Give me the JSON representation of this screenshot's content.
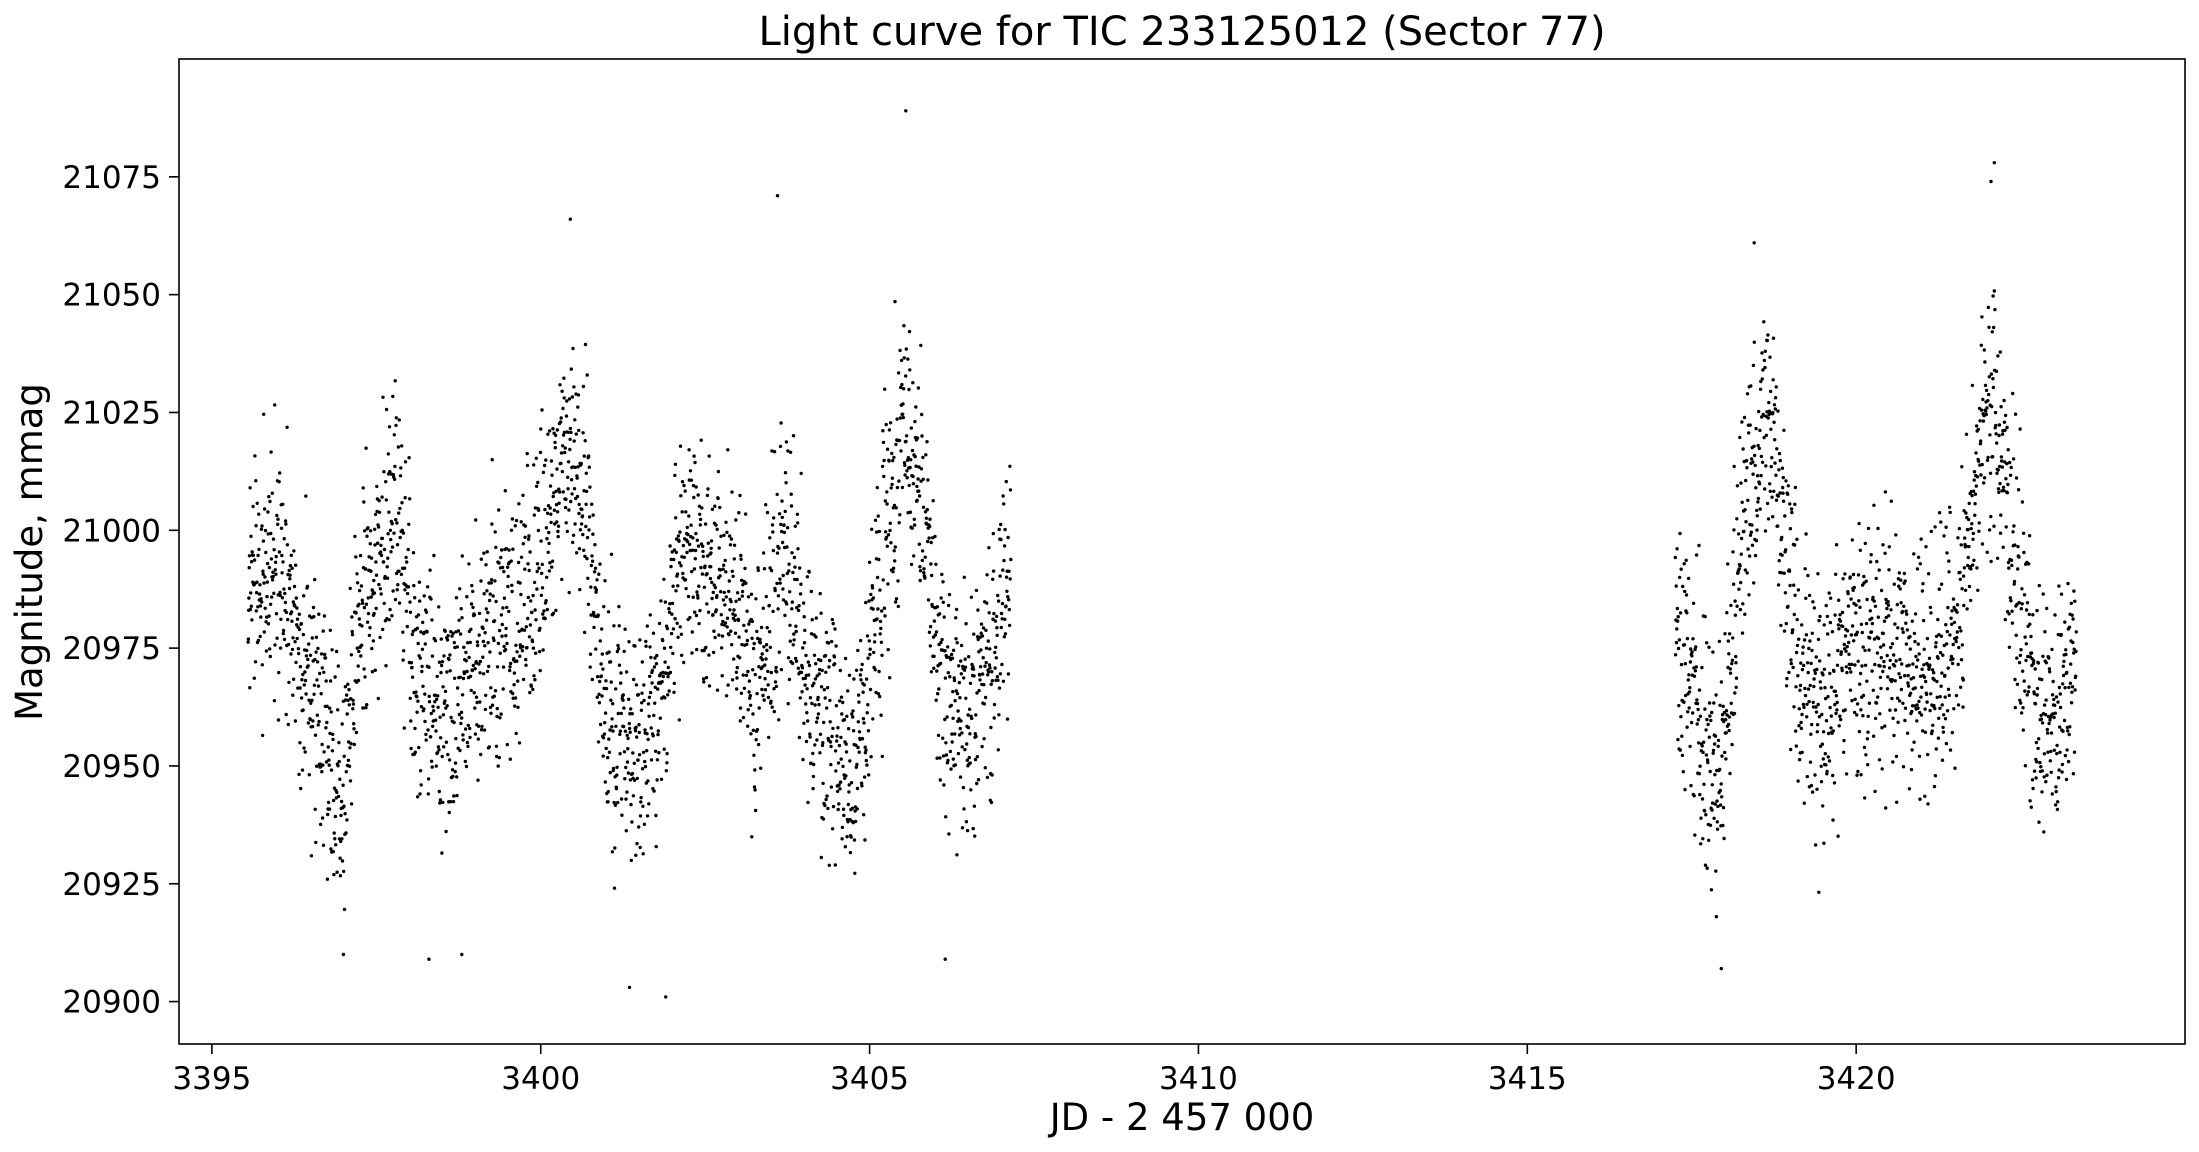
{
  "chart_data": {
    "type": "scatter",
    "title": "Light curve for TIC 233125012 (Sector 77)",
    "xlabel": "JD - 2 457 000",
    "ylabel": "Magnitude, mmag",
    "xlim": [
      3394.5,
      3425.0
    ],
    "ylim": [
      20891,
      21100
    ],
    "x_ticks": [
      3395,
      3400,
      3405,
      3410,
      3415,
      3420
    ],
    "x_tick_labels": [
      "3395",
      "3400",
      "3405",
      "3410",
      "3415",
      "3420"
    ],
    "y_ticks": [
      20900,
      20925,
      20950,
      20975,
      21000,
      21025,
      21050,
      21075
    ],
    "y_tick_labels": [
      "20900",
      "20925",
      "20950",
      "20975",
      "21000",
      "21025",
      "21050",
      "21075"
    ],
    "grid": false,
    "legend": "none",
    "marker_color": "#000000",
    "segments": [
      {
        "x_start": 3395.55,
        "x_end": 3407.15
      },
      {
        "x_start": 3417.25,
        "x_end": 3423.35
      }
    ],
    "trend": {
      "x": [
        3395.5,
        3396.0,
        3396.4,
        3396.8,
        3397.0,
        3397.3,
        3397.8,
        3398.1,
        3398.5,
        3399.0,
        3399.6,
        3400.0,
        3400.35,
        3400.7,
        3401.0,
        3401.4,
        3401.8,
        3402.2,
        3402.55,
        3402.9,
        3403.3,
        3403.7,
        3404.0,
        3404.4,
        3404.8,
        3405.2,
        3405.5,
        3405.8,
        3406.1,
        3406.6,
        3407.15,
        3417.25,
        3417.6,
        3417.95,
        3418.3,
        3418.6,
        3418.9,
        3419.2,
        3419.5,
        3419.9,
        3420.3,
        3420.7,
        3421.1,
        3421.5,
        3421.8,
        3422.1,
        3422.4,
        3422.7,
        3423.0,
        3423.35
      ],
      "y": [
        20985,
        20990,
        20968,
        20955,
        20945,
        20985,
        21005,
        20968,
        20962,
        20975,
        20980,
        20990,
        21020,
        21005,
        20960,
        20952,
        20965,
        21000,
        20990,
        20988,
        20965,
        21000,
        20975,
        20955,
        20950,
        20990,
        21025,
        21005,
        20965,
        20960,
        20990,
        20980,
        20960,
        20948,
        21005,
        21025,
        21005,
        20965,
        20960,
        20975,
        20975,
        20972,
        20970,
        20975,
        21010,
        21025,
        20995,
        20965,
        20958,
        20970
      ]
    },
    "scatter_amplitude_mmag": 22,
    "outliers": {
      "x": [
        3405.55,
        3403.6,
        3400.45,
        3422.1,
        3422.05,
        3401.35,
        3401.9,
        3417.95,
        3418.45,
        3406.15,
        3397.0,
        3398.3,
        3398.8
      ],
      "y": [
        21089,
        21071,
        21066,
        21078,
        21074,
        20903,
        20901,
        20907,
        21061,
        20909,
        20910,
        20909,
        20910
      ]
    }
  }
}
